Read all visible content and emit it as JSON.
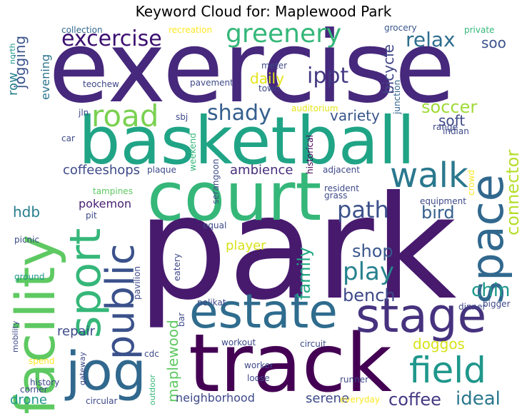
{
  "title": "Keyword Cloud for: Maplewood Park",
  "words": {
    "park": "park",
    "exercise": "exercise",
    "basketball": "basketball",
    "court": "court",
    "track": "track",
    "estate": "estate",
    "stage": "stage",
    "facility": "facility",
    "space": "space",
    "sport": "sport",
    "jog": "jog",
    "public": "public",
    "field": "field",
    "walk": "walk",
    "road": "road",
    "greenery": "greenery",
    "excercise": "excercise",
    "play": "play",
    "shady": "shady",
    "path": "path",
    "ippt": "ippt",
    "relax": "relax",
    "soccer": "soccer",
    "bench": "bench",
    "bird": "bird",
    "shop": "shop",
    "chin": "chin",
    "connector": "connector",
    "family": "family",
    "ideal": "ideal",
    "coffee": "coffee",
    "maplewood": "maplewood",
    "doggos": "doggos",
    "variety": "variety",
    "daily": "daily",
    "soft": "soft",
    "soo": "soo",
    "bicycle": "bicycle",
    "jogging": "jogging",
    "evening": "evening",
    "row": "row",
    "hdb": "hdb",
    "coffeeshops": "coffeeshops",
    "ambience": "ambience",
    "pokemon": "pokemon",
    "player": "player",
    "repair": "repair",
    "neighborhood": "neighborhood",
    "serene": "serene",
    "drone": "drone",
    "collection": "collection",
    "recreation": "recreation",
    "grocery": "grocery",
    "private": "private",
    "north": "north",
    "meter": "meter",
    "junction": "junction",
    "teochew": "teochew",
    "pavement": "pavement",
    "town": "town",
    "jln": "jln",
    "sbj": "sbj",
    "auditorium": "auditorium",
    "range": "range",
    "indian": "indian",
    "car": "car",
    "weekend": "weekend",
    "plaque": "plaque",
    "historical": "historical",
    "adjacent": "adjacent",
    "resident": "resident",
    "grass": "grass",
    "tampines": "tampines",
    "serangoon": "serangoon",
    "pit": "pit",
    "equipment": "equipment",
    "crowd": "crowd",
    "equal": "equal",
    "picnic": "picnic",
    "eatery": "eatery",
    "ground": "ground",
    "pavilion": "pavilion",
    "pelikat": "pelikat",
    "dinner": "dinner",
    "bigger": "bigger",
    "mobility": "mobility",
    "bar": "bar",
    "workout": "workout",
    "circuit": "circuit",
    "cdc": "cdc",
    "spend": "spend",
    "gateway": "gateway",
    "outdoor": "outdoor",
    "worker": "worker",
    "history": "history",
    "loose": "loose",
    "runner": "runner",
    "corner": "corner",
    "circular": "circular",
    "everyday": "everyday"
  },
  "colors": {
    "purple_dark": "#440154",
    "purple": "#46287c",
    "indigo": "#3b518b",
    "blue": "#31688e",
    "teal_blue": "#27808e",
    "teal": "#1f978b",
    "green_teal": "#20a486",
    "green": "#35b779",
    "light_green": "#5ec962",
    "lime": "#95d840",
    "yellow": "#d8e219",
    "bright_yellow": "#fde725"
  }
}
